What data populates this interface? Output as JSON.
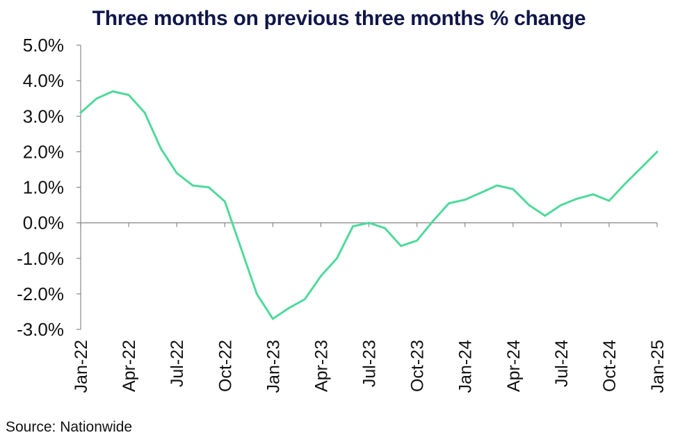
{
  "chart_data": {
    "type": "line",
    "title": "Three months on previous three months % change",
    "xlabel": "",
    "ylabel": "",
    "ylim": [
      -3.0,
      5.0
    ],
    "yticks": [
      "5.0%",
      "4.0%",
      "3.0%",
      "2.0%",
      "1.0%",
      "0.0%",
      "-1.0%",
      "-2.0%",
      "-3.0%"
    ],
    "ytick_values": [
      5.0,
      4.0,
      3.0,
      2.0,
      1.0,
      0.0,
      -1.0,
      -2.0,
      -3.0
    ],
    "xticks": [
      "Jan-22",
      "Apr-22",
      "Jul-22",
      "Oct-22",
      "Jan-23",
      "Apr-23",
      "Jul-23",
      "Oct-23",
      "Jan-24",
      "Apr-24",
      "Jul-24",
      "Oct-24",
      "Jan-25"
    ],
    "grid": false,
    "legend": "none",
    "line_color": "#4fd99b",
    "x": [
      "Jan-22",
      "Feb-22",
      "Mar-22",
      "Apr-22",
      "May-22",
      "Jun-22",
      "Jul-22",
      "Aug-22",
      "Sep-22",
      "Oct-22",
      "Nov-22",
      "Dec-22",
      "Jan-23",
      "Feb-23",
      "Mar-23",
      "Apr-23",
      "May-23",
      "Jun-23",
      "Jul-23",
      "Aug-23",
      "Sep-23",
      "Oct-23",
      "Nov-23",
      "Dec-23",
      "Jan-24",
      "Feb-24",
      "Mar-24",
      "Apr-24",
      "May-24",
      "Jun-24",
      "Jul-24",
      "Aug-24",
      "Sep-24",
      "Oct-24",
      "Nov-24",
      "Dec-24",
      "Jan-25"
    ],
    "series": [
      {
        "values": [
          3.1,
          3.5,
          3.7,
          3.6,
          3.1,
          2.1,
          1.4,
          1.05,
          1.0,
          0.6,
          -0.7,
          -2.0,
          -2.7,
          -2.4,
          -2.15,
          -1.5,
          -1.0,
          -0.1,
          0.0,
          -0.15,
          -0.65,
          -0.5,
          0.05,
          0.55,
          0.65,
          0.85,
          1.05,
          0.95,
          0.5,
          0.2,
          0.5,
          0.68,
          0.8,
          0.62,
          1.1,
          1.55,
          2.0
        ]
      }
    ]
  },
  "source": "Source: Nationwide"
}
